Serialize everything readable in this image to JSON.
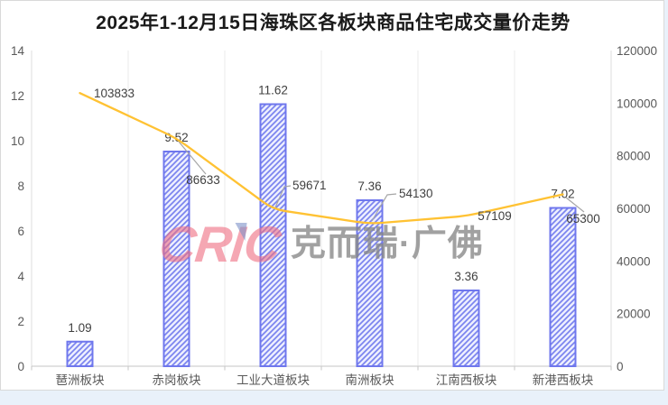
{
  "page": {
    "background": "#E9F1FA",
    "card_border": "#D9D9D9"
  },
  "chart_data": {
    "type": "combo",
    "title": "2025年1-12月15日海珠区各板块商品住宅成交量价走势",
    "categories": [
      "琶洲板块",
      "赤岗板块",
      "工业大道板块",
      "南洲板块",
      "江南西板块",
      "新港西板块"
    ],
    "series": [
      {
        "role": "bar",
        "axis": "left",
        "values": [
          1.09,
          9.52,
          11.62,
          7.36,
          3.36,
          7.02
        ]
      },
      {
        "role": "line",
        "axis": "right",
        "values": [
          103833,
          86633,
          59671,
          54130,
          57109,
          65300
        ]
      }
    ],
    "left_axis": {
      "min": 0,
      "max": 14,
      "tick_labels": [
        "0",
        "2",
        "4",
        "6",
        "8",
        "10",
        "12",
        "14"
      ]
    },
    "right_axis": {
      "min": 0,
      "max": 120000,
      "tick_labels": [
        "0",
        "20000",
        "40000",
        "60000",
        "80000",
        "100000",
        "120000"
      ]
    },
    "grid": "vertical-only",
    "legend": "none",
    "colors": {
      "line": "#FFC233",
      "bar_border": "#6F77ED",
      "bar_stripe": "#7B84EF",
      "bar_background": "#EDEFFE",
      "gridline": "#EBEBEB",
      "plot_edge": "#DCDCDC",
      "axis_line": "#C6C6C6",
      "leader_line": "#A6A6A6",
      "tick_text": "#595959",
      "label_text": "#404040"
    }
  },
  "watermark": {
    "logo_text": "CRIC",
    "cn_text": "克而瑞·广佛",
    "logo_color": "#EE6C80",
    "text_color": "#878787"
  }
}
